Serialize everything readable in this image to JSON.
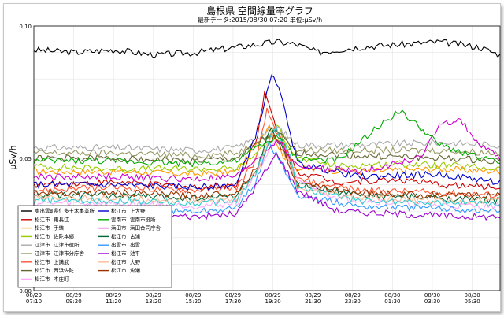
{
  "chart_data": {
    "type": "line",
    "title": "島根県 空間線量率グラフ",
    "subtitle": "最新データ:2015/08/30 07:20  単位:μSv/h",
    "ylabel": "μSv/h",
    "xlabel": "",
    "ylim": [
      0,
      0.1
    ],
    "grid": true,
    "legend_position": "lower-left",
    "y_ticks": [
      "0.00",
      "0.05",
      "0.10"
    ],
    "x_ticks": [
      {
        "date": "08/29",
        "time": "07:10"
      },
      {
        "date": "08/29",
        "time": "09:20"
      },
      {
        "date": "08/29",
        "time": "11:20"
      },
      {
        "date": "08/29",
        "time": "13:20"
      },
      {
        "date": "08/29",
        "time": "15:20"
      },
      {
        "date": "08/29",
        "time": "17:30"
      },
      {
        "date": "08/29",
        "time": "19:30"
      },
      {
        "date": "08/29",
        "time": "21:30"
      },
      {
        "date": "08/29",
        "time": "23:30"
      },
      {
        "date": "08/30",
        "time": "01:30"
      },
      {
        "date": "08/30",
        "time": "03:30"
      },
      {
        "date": "08/30",
        "time": "05:30"
      }
    ],
    "series": [
      {
        "city": "奥出雲町",
        "site": "県仁多土木事業所",
        "color": "#000000",
        "keys": [
          [
            0,
            0.091
          ],
          [
            2,
            0.09
          ],
          [
            4,
            0.091
          ],
          [
            6,
            0.089
          ],
          [
            8,
            0.09
          ],
          [
            10,
            0.092
          ],
          [
            12,
            0.094
          ],
          [
            13,
            0.093
          ],
          [
            14,
            0.09
          ],
          [
            16,
            0.092
          ],
          [
            18,
            0.093
          ],
          [
            20,
            0.094
          ],
          [
            22,
            0.092
          ],
          [
            23,
            0.089
          ]
        ]
      },
      {
        "city": "松江市",
        "site": "東長江",
        "color": "#cc0000",
        "keys": [
          [
            0,
            0.04
          ],
          [
            4,
            0.041
          ],
          [
            8,
            0.039
          ],
          [
            10,
            0.04
          ],
          [
            11,
            0.058
          ],
          [
            11.4,
            0.075
          ],
          [
            12,
            0.06
          ],
          [
            13,
            0.045
          ],
          [
            15,
            0.041
          ],
          [
            18,
            0.042
          ],
          [
            20,
            0.04
          ],
          [
            23,
            0.039
          ]
        ]
      },
      {
        "city": "松江市",
        "site": "手結",
        "color": "#ff9900",
        "keys": [
          [
            0,
            0.045
          ],
          [
            4,
            0.045
          ],
          [
            8,
            0.044
          ],
          [
            10,
            0.045
          ],
          [
            11,
            0.055
          ],
          [
            11.6,
            0.063
          ],
          [
            12.2,
            0.052
          ],
          [
            13,
            0.046
          ],
          [
            16,
            0.045
          ],
          [
            20,
            0.046
          ],
          [
            23,
            0.045
          ]
        ]
      },
      {
        "city": "松江市",
        "site": "佐陀本郷",
        "color": "#99cc00",
        "keys": [
          [
            0,
            0.047
          ],
          [
            4,
            0.046
          ],
          [
            8,
            0.046
          ],
          [
            10,
            0.046
          ],
          [
            11,
            0.052
          ],
          [
            12,
            0.062
          ],
          [
            13,
            0.05
          ],
          [
            15,
            0.047
          ],
          [
            18,
            0.048
          ],
          [
            21,
            0.047
          ],
          [
            23,
            0.046
          ]
        ]
      },
      {
        "city": "江津市",
        "site": "江津市役所",
        "color": "#aaaaaa",
        "keys": [
          [
            0,
            0.054
          ],
          [
            4,
            0.054
          ],
          [
            8,
            0.053
          ],
          [
            10,
            0.054
          ],
          [
            11,
            0.058
          ],
          [
            12,
            0.062
          ],
          [
            13,
            0.055
          ],
          [
            16,
            0.055
          ],
          [
            20,
            0.056
          ],
          [
            23,
            0.055
          ]
        ]
      },
      {
        "city": "江津市",
        "site": "江津市分庁舎",
        "color": "#999966",
        "keys": [
          [
            0,
            0.052
          ],
          [
            4,
            0.052
          ],
          [
            8,
            0.051
          ],
          [
            10,
            0.052
          ],
          [
            11,
            0.056
          ],
          [
            12,
            0.06
          ],
          [
            13,
            0.053
          ],
          [
            16,
            0.053
          ],
          [
            20,
            0.053
          ],
          [
            23,
            0.052
          ]
        ]
      },
      {
        "city": "松江市",
        "site": "上講武",
        "color": "#ff5533",
        "keys": [
          [
            0,
            0.038
          ],
          [
            4,
            0.039
          ],
          [
            8,
            0.038
          ],
          [
            10,
            0.039
          ],
          [
            11,
            0.05
          ],
          [
            11.5,
            0.068
          ],
          [
            12.3,
            0.055
          ],
          [
            13,
            0.042
          ],
          [
            16,
            0.038
          ],
          [
            20,
            0.037
          ],
          [
            23,
            0.036
          ]
        ]
      },
      {
        "city": "松江市",
        "site": "西浜佐陀",
        "color": "#666633",
        "keys": [
          [
            0,
            0.05
          ],
          [
            4,
            0.05
          ],
          [
            8,
            0.049
          ],
          [
            10,
            0.05
          ],
          [
            11,
            0.056
          ],
          [
            12,
            0.06
          ],
          [
            13,
            0.052
          ],
          [
            16,
            0.051
          ],
          [
            20,
            0.05
          ],
          [
            23,
            0.049
          ]
        ]
      },
      {
        "city": "松江市",
        "site": "本庄町",
        "color": "#ffaaff",
        "keys": [
          [
            0,
            0.033
          ],
          [
            4,
            0.033
          ],
          [
            8,
            0.032
          ],
          [
            10,
            0.033
          ],
          [
            11,
            0.045
          ],
          [
            12,
            0.058
          ],
          [
            13,
            0.042
          ],
          [
            15,
            0.035
          ],
          [
            18,
            0.033
          ],
          [
            21,
            0.032
          ],
          [
            23,
            0.032
          ]
        ]
      },
      {
        "city": "松江市",
        "site": "上大野",
        "color": "#0000cc",
        "keys": [
          [
            0,
            0.04
          ],
          [
            4,
            0.04
          ],
          [
            8,
            0.039
          ],
          [
            10,
            0.04
          ],
          [
            11,
            0.06
          ],
          [
            11.8,
            0.083
          ],
          [
            12.5,
            0.065
          ],
          [
            13,
            0.048
          ],
          [
            16,
            0.043
          ],
          [
            20,
            0.044
          ],
          [
            23,
            0.041
          ]
        ]
      },
      {
        "city": "雲南市",
        "site": "雲南市役所",
        "color": "#00aa00",
        "keys": [
          [
            0,
            0.049
          ],
          [
            4,
            0.049
          ],
          [
            8,
            0.048
          ],
          [
            10,
            0.049
          ],
          [
            11,
            0.054
          ],
          [
            12,
            0.058
          ],
          [
            13,
            0.05
          ],
          [
            15,
            0.049
          ],
          [
            17,
            0.062
          ],
          [
            18,
            0.068
          ],
          [
            19,
            0.062
          ],
          [
            20,
            0.055
          ],
          [
            23,
            0.048
          ]
        ]
      },
      {
        "city": "浜田市",
        "site": "浜田合同庁舎",
        "color": "#cc00cc",
        "keys": [
          [
            0,
            0.043
          ],
          [
            4,
            0.043
          ],
          [
            8,
            0.042
          ],
          [
            10,
            0.043
          ],
          [
            11,
            0.05
          ],
          [
            12,
            0.057
          ],
          [
            13,
            0.047
          ],
          [
            16,
            0.045
          ],
          [
            19,
            0.05
          ],
          [
            20,
            0.062
          ],
          [
            21,
            0.065
          ],
          [
            22,
            0.055
          ],
          [
            23,
            0.05
          ]
        ]
      },
      {
        "city": "松江市",
        "site": "古浦",
        "color": "#006633",
        "keys": [
          [
            0,
            0.036
          ],
          [
            4,
            0.036
          ],
          [
            8,
            0.035
          ],
          [
            10,
            0.036
          ],
          [
            11,
            0.046
          ],
          [
            11.7,
            0.061
          ],
          [
            12.5,
            0.05
          ],
          [
            13,
            0.04
          ],
          [
            16,
            0.036
          ],
          [
            20,
            0.035
          ],
          [
            23,
            0.034
          ]
        ]
      },
      {
        "city": "出雲市",
        "site": "出雲",
        "color": "#3399ff",
        "keys": [
          [
            0,
            0.031
          ],
          [
            4,
            0.031
          ],
          [
            8,
            0.03
          ],
          [
            10,
            0.031
          ],
          [
            11,
            0.042
          ],
          [
            11.6,
            0.056
          ],
          [
            12.4,
            0.045
          ],
          [
            13,
            0.036
          ],
          [
            16,
            0.032
          ],
          [
            20,
            0.031
          ],
          [
            23,
            0.03
          ]
        ]
      },
      {
        "city": "松江市",
        "site": "池平",
        "color": "#9900cc",
        "keys": [
          [
            0,
            0.029
          ],
          [
            4,
            0.029
          ],
          [
            8,
            0.028
          ],
          [
            10,
            0.029
          ],
          [
            11,
            0.04
          ],
          [
            12,
            0.052
          ],
          [
            13,
            0.038
          ],
          [
            15,
            0.03
          ],
          [
            18,
            0.029
          ],
          [
            21,
            0.028
          ],
          [
            23,
            0.028
          ]
        ]
      },
      {
        "city": "松江市",
        "site": "大野",
        "color": "#ffbb99",
        "keys": [
          [
            0,
            0.035
          ],
          [
            4,
            0.035
          ],
          [
            8,
            0.034
          ],
          [
            10,
            0.035
          ],
          [
            11,
            0.045
          ],
          [
            11.8,
            0.06
          ],
          [
            12.6,
            0.048
          ],
          [
            13,
            0.038
          ],
          [
            16,
            0.035
          ],
          [
            20,
            0.034
          ],
          [
            23,
            0.034
          ]
        ]
      },
      {
        "city": "松江市",
        "site": "魚瀬",
        "color": "#993300",
        "keys": [
          [
            0,
            0.037
          ],
          [
            4,
            0.037
          ],
          [
            8,
            0.036
          ],
          [
            10,
            0.037
          ],
          [
            11,
            0.047
          ],
          [
            11.9,
            0.059
          ],
          [
            12.6,
            0.048
          ],
          [
            13,
            0.04
          ],
          [
            16,
            0.037
          ],
          [
            20,
            0.036
          ],
          [
            23,
            0.036
          ]
        ]
      },
      {
        "city": "",
        "site": "",
        "color": "#33cccc",
        "keys": [
          [
            0,
            0.034
          ],
          [
            4,
            0.034
          ],
          [
            8,
            0.033
          ],
          [
            10,
            0.034
          ],
          [
            11,
            0.045
          ],
          [
            11.9,
            0.062
          ],
          [
            12.7,
            0.05
          ],
          [
            13,
            0.039
          ],
          [
            16,
            0.034
          ],
          [
            20,
            0.033
          ],
          [
            23,
            0.033
          ]
        ]
      }
    ]
  }
}
